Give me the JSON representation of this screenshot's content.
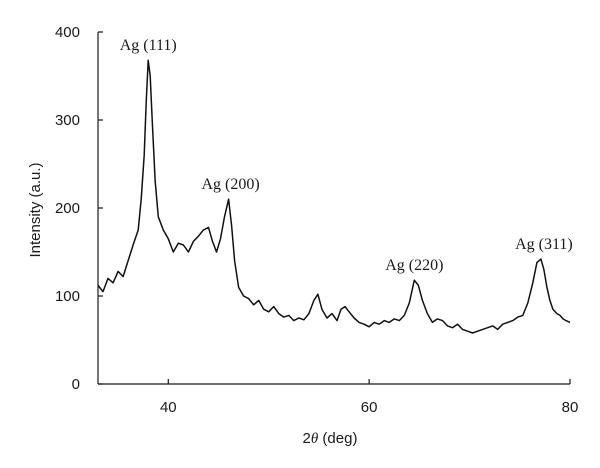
{
  "chart_data": {
    "type": "line",
    "title": "",
    "xlabel_parts": [
      "2",
      "θ",
      " (deg)"
    ],
    "ylabel": "Intensity (a.u.)",
    "xlim": [
      33,
      80
    ],
    "ylim": [
      0,
      400
    ],
    "x_ticks": [
      40,
      60,
      80
    ],
    "y_ticks": [
      0,
      100,
      200,
      300,
      400
    ],
    "grid": false,
    "legend": "none",
    "line_color": "#111111",
    "annotations": [
      {
        "text": "Ag (111)",
        "x": 38.0,
        "y": 368
      },
      {
        "text": "Ag (200)",
        "x": 46.2,
        "y": 210
      },
      {
        "text": "Ag (220)",
        "x": 64.5,
        "y": 118
      },
      {
        "text": "Ag (311)",
        "x": 77.4,
        "y": 142
      }
    ],
    "series": [
      {
        "x": [
          33.0,
          33.5,
          34.0,
          34.5,
          35.0,
          35.5,
          36.0,
          36.5,
          37.0,
          37.3,
          37.6,
          37.8,
          38.0,
          38.2,
          38.4,
          38.7,
          39.0,
          39.5,
          40.0,
          40.5,
          41.0,
          41.5,
          42.0,
          42.5,
          43.0,
          43.5,
          44.0,
          44.4,
          44.8,
          45.2,
          45.6,
          46.0,
          46.3,
          46.6,
          47.0,
          47.5,
          48.0,
          48.5,
          49.0,
          49.5,
          50.0,
          50.5,
          51.0,
          51.5,
          52.0,
          52.5,
          53.0,
          53.5,
          54.0,
          54.5,
          54.9,
          55.3,
          55.8,
          56.3,
          56.8,
          57.2,
          57.6,
          58.0,
          58.5,
          59.0,
          59.5,
          60.0,
          60.5,
          61.0,
          61.5,
          62.0,
          62.5,
          63.0,
          63.5,
          64.0,
          64.5,
          64.9,
          65.3,
          65.8,
          66.3,
          66.8,
          67.3,
          67.8,
          68.3,
          68.8,
          69.3,
          69.8,
          70.3,
          70.8,
          71.3,
          71.8,
          72.3,
          72.8,
          73.3,
          73.8,
          74.3,
          74.8,
          75.3,
          75.8,
          76.3,
          76.7,
          77.1,
          77.4,
          77.7,
          78.0,
          78.3,
          78.7,
          79.0,
          79.3,
          79.6,
          80.0
        ],
        "y": [
          112,
          105,
          120,
          115,
          128,
          122,
          140,
          158,
          175,
          210,
          260,
          320,
          368,
          350,
          300,
          230,
          190,
          175,
          165,
          150,
          160,
          158,
          150,
          162,
          168,
          175,
          178,
          162,
          150,
          165,
          190,
          210,
          180,
          140,
          110,
          100,
          97,
          90,
          95,
          85,
          82,
          88,
          80,
          76,
          78,
          72,
          75,
          73,
          80,
          95,
          102,
          85,
          75,
          80,
          72,
          85,
          88,
          82,
          75,
          70,
          68,
          65,
          70,
          68,
          72,
          70,
          74,
          72,
          78,
          92,
          118,
          112,
          95,
          80,
          70,
          74,
          72,
          66,
          64,
          68,
          62,
          60,
          58,
          60,
          62,
          64,
          66,
          62,
          68,
          70,
          72,
          76,
          78,
          92,
          115,
          138,
          142,
          130,
          110,
          95,
          85,
          80,
          78,
          74,
          72,
          70
        ]
      }
    ]
  }
}
